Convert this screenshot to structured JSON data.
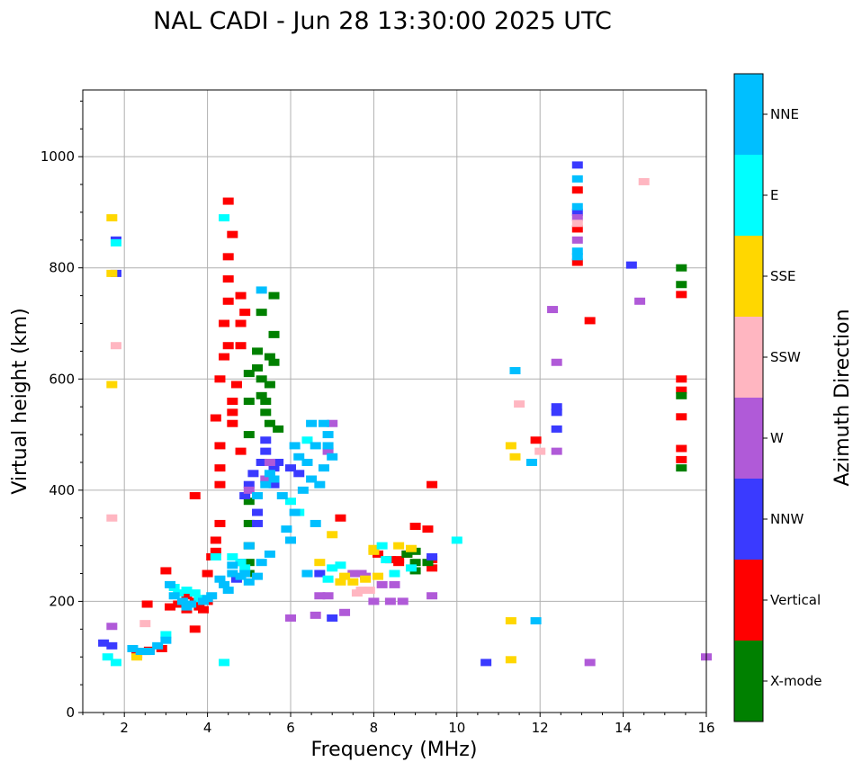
{
  "chart_data": {
    "type": "scatter",
    "title": "NAL CADI - Jun 28 13:30:00 2025 UTC",
    "xlabel": "Frequency (MHz)",
    "ylabel": "Virtual height (km)",
    "xlim": [
      1,
      16
    ],
    "ylim": [
      0,
      1120
    ],
    "xticks": [
      2,
      4,
      6,
      8,
      10,
      12,
      14,
      16
    ],
    "yticks": [
      0,
      200,
      400,
      600,
      800,
      1000
    ],
    "grid": true,
    "colorbar": {
      "label": "Azimuth Direction",
      "categories": [
        {
          "name": "X-mode",
          "color": "#008000"
        },
        {
          "name": "Vertical",
          "color": "#ff0000"
        },
        {
          "name": "NNW",
          "color": "#3a3aff"
        },
        {
          "name": "W",
          "color": "#b05ad8"
        },
        {
          "name": "SSW",
          "color": "#ffb6c1"
        },
        {
          "name": "SSE",
          "color": "#ffd700"
        },
        {
          "name": "E",
          "color": "#00ffff"
        },
        {
          "name": "NNE",
          "color": "#00bfff"
        }
      ]
    },
    "series": [
      {
        "name": "Vertical",
        "color": "#ff0000",
        "points": [
          [
            2.3,
            104
          ],
          [
            2.5,
            110
          ],
          [
            2.6,
            112
          ],
          [
            2.9,
            115
          ],
          [
            2.55,
            195
          ],
          [
            3.0,
            255
          ],
          [
            3.1,
            190
          ],
          [
            3.3,
            195
          ],
          [
            3.5,
            210
          ],
          [
            3.5,
            185
          ],
          [
            3.7,
            200
          ],
          [
            3.7,
            150
          ],
          [
            3.8,
            190
          ],
          [
            3.9,
            185
          ],
          [
            4.0,
            200
          ],
          [
            4.0,
            250
          ],
          [
            4.1,
            280
          ],
          [
            4.2,
            290
          ],
          [
            4.2,
            310
          ],
          [
            4.3,
            340
          ],
          [
            4.3,
            410
          ],
          [
            4.3,
            440
          ],
          [
            4.3,
            480
          ],
          [
            4.2,
            530
          ],
          [
            4.3,
            600
          ],
          [
            4.4,
            640
          ],
          [
            4.5,
            660
          ],
          [
            4.4,
            700
          ],
          [
            4.5,
            740
          ],
          [
            4.5,
            780
          ],
          [
            4.5,
            820
          ],
          [
            4.6,
            860
          ],
          [
            4.6,
            560
          ],
          [
            4.6,
            540
          ],
          [
            4.7,
            590
          ],
          [
            4.8,
            470
          ],
          [
            4.8,
            660
          ],
          [
            4.8,
            700
          ],
          [
            4.8,
            750
          ],
          [
            4.9,
            720
          ],
          [
            4.5,
            920
          ],
          [
            4.6,
            520
          ],
          [
            3.7,
            390
          ],
          [
            8.1,
            285
          ],
          [
            8.4,
            275
          ],
          [
            8.6,
            275
          ],
          [
            8.6,
            270
          ],
          [
            8.8,
            285
          ],
          [
            9.0,
            335
          ],
          [
            9.3,
            330
          ],
          [
            9.4,
            410
          ],
          [
            9.4,
            275
          ],
          [
            9.4,
            260
          ],
          [
            7.2,
            350
          ],
          [
            11.9,
            490
          ],
          [
            12.9,
            940
          ],
          [
            12.9,
            870
          ],
          [
            12.9,
            810
          ],
          [
            13.2,
            705
          ],
          [
            15.4,
            600
          ],
          [
            15.4,
            580
          ],
          [
            15.4,
            475
          ],
          [
            15.4,
            455
          ],
          [
            15.4,
            532
          ],
          [
            15.4,
            752
          ]
        ]
      },
      {
        "name": "X-mode",
        "color": "#008000",
        "points": [
          [
            5.0,
            380
          ],
          [
            5.0,
            340
          ],
          [
            5.0,
            300
          ],
          [
            5.0,
            270
          ],
          [
            5.0,
            250
          ],
          [
            5.0,
            560
          ],
          [
            5.0,
            610
          ],
          [
            5.2,
            650
          ],
          [
            5.2,
            620
          ],
          [
            5.3,
            600
          ],
          [
            5.3,
            570
          ],
          [
            5.4,
            560
          ],
          [
            5.4,
            540
          ],
          [
            5.5,
            520
          ],
          [
            5.5,
            590
          ],
          [
            5.5,
            640
          ],
          [
            5.6,
            630
          ],
          [
            5.6,
            680
          ],
          [
            5.6,
            750
          ],
          [
            5.3,
            720
          ],
          [
            5.7,
            510
          ],
          [
            5.0,
            500
          ],
          [
            8.8,
            285
          ],
          [
            9.0,
            290
          ],
          [
            9.0,
            270
          ],
          [
            9.0,
            255
          ],
          [
            9.3,
            270
          ],
          [
            15.4,
            800
          ],
          [
            15.4,
            770
          ],
          [
            15.4,
            440
          ],
          [
            15.4,
            570
          ]
        ]
      },
      {
        "name": "NNW",
        "color": "#3a3aff",
        "points": [
          [
            1.5,
            125
          ],
          [
            1.7,
            120
          ],
          [
            1.8,
            850
          ],
          [
            1.8,
            790
          ],
          [
            4.7,
            240
          ],
          [
            4.8,
            270
          ],
          [
            4.9,
            390
          ],
          [
            5.0,
            410
          ],
          [
            5.1,
            430
          ],
          [
            5.2,
            360
          ],
          [
            5.2,
            340
          ],
          [
            5.3,
            450
          ],
          [
            5.4,
            470
          ],
          [
            5.4,
            490
          ],
          [
            5.6,
            410
          ],
          [
            5.6,
            440
          ],
          [
            5.7,
            450
          ],
          [
            6.0,
            440
          ],
          [
            6.2,
            430
          ],
          [
            6.4,
            250
          ],
          [
            6.7,
            250
          ],
          [
            7.0,
            170
          ],
          [
            9.4,
            280
          ],
          [
            10.7,
            90
          ],
          [
            12.4,
            550
          ],
          [
            12.4,
            540
          ],
          [
            12.4,
            510
          ],
          [
            12.9,
            985
          ],
          [
            12.9,
            900
          ],
          [
            14.2,
            805
          ]
        ]
      },
      {
        "name": "W",
        "color": "#b05ad8",
        "points": [
          [
            1.7,
            155
          ],
          [
            5.0,
            400
          ],
          [
            5.4,
            420
          ],
          [
            5.5,
            450
          ],
          [
            6.0,
            170
          ],
          [
            6.6,
            175
          ],
          [
            6.7,
            210
          ],
          [
            6.9,
            210
          ],
          [
            6.9,
            470
          ],
          [
            7.0,
            520
          ],
          [
            7.3,
            180
          ],
          [
            7.5,
            250
          ],
          [
            7.7,
            250
          ],
          [
            7.8,
            245
          ],
          [
            8.0,
            200
          ],
          [
            8.2,
            230
          ],
          [
            8.4,
            200
          ],
          [
            8.5,
            230
          ],
          [
            8.7,
            200
          ],
          [
            9.4,
            210
          ],
          [
            12.3,
            725
          ],
          [
            12.4,
            470
          ],
          [
            12.4,
            630
          ],
          [
            12.9,
            890
          ],
          [
            12.9,
            850
          ],
          [
            13.2,
            90
          ],
          [
            14.4,
            740
          ],
          [
            16,
            100
          ]
        ]
      },
      {
        "name": "SSW",
        "color": "#ffb6c1",
        "points": [
          [
            1.7,
            350
          ],
          [
            1.8,
            660
          ],
          [
            2.5,
            160
          ],
          [
            7.6,
            215
          ],
          [
            7.7,
            220
          ],
          [
            7.9,
            220
          ],
          [
            11.5,
            555
          ],
          [
            12.0,
            470
          ],
          [
            12.9,
            880
          ],
          [
            14.5,
            955
          ]
        ]
      },
      {
        "name": "SSE",
        "color": "#ffd700",
        "points": [
          [
            1.7,
            890
          ],
          [
            1.7,
            790
          ],
          [
            1.7,
            590
          ],
          [
            2.3,
            100
          ],
          [
            2.5,
            110
          ],
          [
            6.7,
            270
          ],
          [
            7.0,
            320
          ],
          [
            7.2,
            235
          ],
          [
            7.3,
            245
          ],
          [
            7.5,
            235
          ],
          [
            7.8,
            240
          ],
          [
            8.0,
            295
          ],
          [
            8.0,
            290
          ],
          [
            8.1,
            245
          ],
          [
            8.6,
            300
          ],
          [
            8.9,
            295
          ],
          [
            11.3,
            480
          ],
          [
            11.4,
            460
          ],
          [
            11.3,
            165
          ],
          [
            11.3,
            95
          ]
        ]
      },
      {
        "name": "E",
        "color": "#00ffff",
        "points": [
          [
            1.6,
            100
          ],
          [
            1.8,
            90
          ],
          [
            1.8,
            845
          ],
          [
            3.0,
            140
          ],
          [
            3.2,
            225
          ],
          [
            3.3,
            215
          ],
          [
            3.5,
            220
          ],
          [
            3.7,
            215
          ],
          [
            3.8,
            205
          ],
          [
            3.9,
            205
          ],
          [
            4.2,
            280
          ],
          [
            4.4,
            90
          ],
          [
            4.4,
            890
          ],
          [
            4.6,
            280
          ],
          [
            4.8,
            270
          ],
          [
            4.9,
            260
          ],
          [
            6.0,
            380
          ],
          [
            6.2,
            360
          ],
          [
            6.4,
            490
          ],
          [
            6.9,
            240
          ],
          [
            7.0,
            260
          ],
          [
            7.2,
            265
          ],
          [
            8.2,
            300
          ],
          [
            8.3,
            275
          ],
          [
            8.5,
            250
          ],
          [
            8.9,
            260
          ],
          [
            10.0,
            310
          ]
        ]
      },
      {
        "name": "NNE",
        "color": "#00bfff",
        "points": [
          [
            2.2,
            115
          ],
          [
            2.4,
            110
          ],
          [
            2.6,
            110
          ],
          [
            2.8,
            120
          ],
          [
            3.0,
            130
          ],
          [
            3.1,
            230
          ],
          [
            3.2,
            210
          ],
          [
            3.4,
            200
          ],
          [
            3.5,
            190
          ],
          [
            3.6,
            195
          ],
          [
            3.9,
            200
          ],
          [
            4.0,
            205
          ],
          [
            4.1,
            210
          ],
          [
            4.3,
            240
          ],
          [
            4.4,
            230
          ],
          [
            4.5,
            220
          ],
          [
            4.6,
            250
          ],
          [
            4.6,
            265
          ],
          [
            4.8,
            245
          ],
          [
            4.9,
            250
          ],
          [
            5.0,
            235
          ],
          [
            5.2,
            245
          ],
          [
            5.3,
            270
          ],
          [
            5.5,
            285
          ],
          [
            5.0,
            300
          ],
          [
            5.2,
            390
          ],
          [
            5.4,
            410
          ],
          [
            5.5,
            430
          ],
          [
            5.6,
            420
          ],
          [
            5.8,
            390
          ],
          [
            5.9,
            330
          ],
          [
            6.0,
            310
          ],
          [
            6.1,
            360
          ],
          [
            6.1,
            480
          ],
          [
            6.2,
            460
          ],
          [
            6.3,
            400
          ],
          [
            6.4,
            450
          ],
          [
            6.5,
            420
          ],
          [
            6.5,
            520
          ],
          [
            6.6,
            340
          ],
          [
            6.6,
            480
          ],
          [
            6.7,
            410
          ],
          [
            6.8,
            440
          ],
          [
            6.8,
            520
          ],
          [
            6.9,
            500
          ],
          [
            6.9,
            480
          ],
          [
            7.0,
            460
          ],
          [
            6.4,
            250
          ],
          [
            5.3,
            760
          ],
          [
            12.9,
            960
          ],
          [
            12.9,
            910
          ],
          [
            12.9,
            830
          ],
          [
            12.9,
            820
          ],
          [
            11.4,
            615
          ],
          [
            11.8,
            450
          ],
          [
            11.9,
            165
          ]
        ]
      }
    ]
  }
}
